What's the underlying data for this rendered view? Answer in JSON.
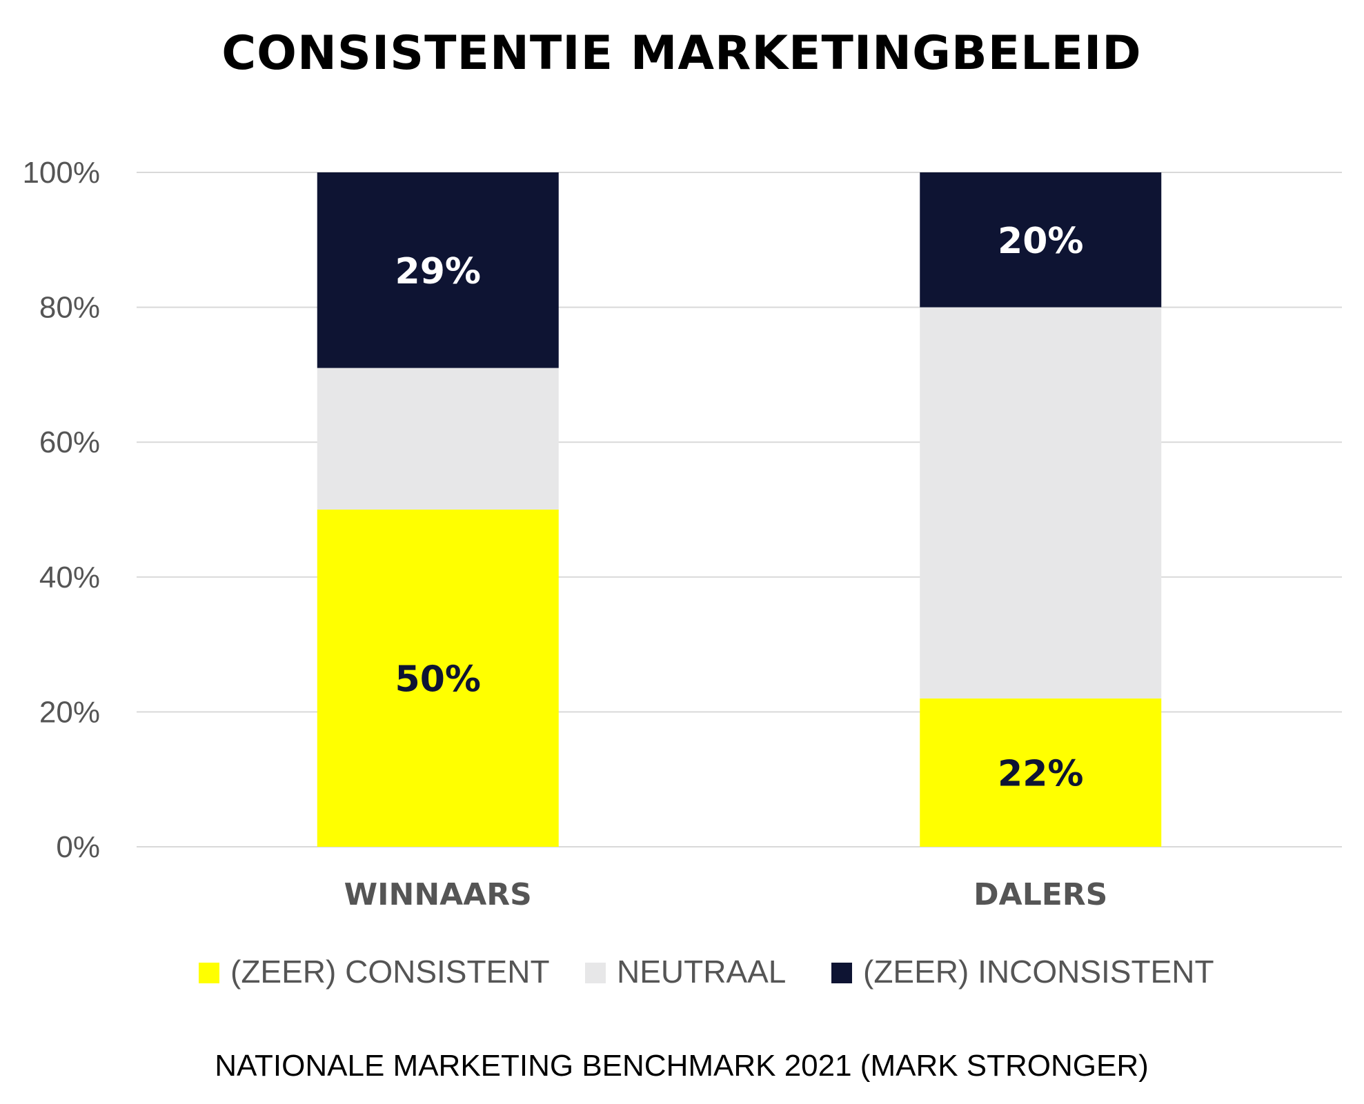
{
  "chart_data": {
    "type": "bar",
    "stacked": true,
    "title": "CONSISTENTIE MARKETINGBELEID",
    "categories": [
      "WINNAARS",
      "DALERS"
    ],
    "series": [
      {
        "name": "(ZEER) CONSISTENT",
        "values": [
          50,
          22
        ],
        "color": "#ffff00",
        "label_color": "#0e1433",
        "data_labels": [
          "50%",
          "22%"
        ]
      },
      {
        "name": "NEUTRAAL",
        "values": [
          21,
          58
        ],
        "color": "#e7e7e8",
        "label_color": "#0e1433",
        "data_labels": [
          "",
          ""
        ]
      },
      {
        "name": "(ZEER) INCONSISTENT",
        "values": [
          29,
          20
        ],
        "color": "#0e1433",
        "label_color": "#ffffff",
        "data_labels": [
          "29%",
          "20%"
        ]
      }
    ],
    "ylim": [
      0,
      100
    ],
    "yticks": [
      0,
      20,
      40,
      60,
      80,
      100
    ],
    "ytick_labels": [
      "0%",
      "20%",
      "40%",
      "60%",
      "80%",
      "100%"
    ],
    "grid": true,
    "legend_position": "bottom",
    "source": "NATIONALE MARKETING BENCHMARK 2021 (MARK STRONGER)"
  }
}
